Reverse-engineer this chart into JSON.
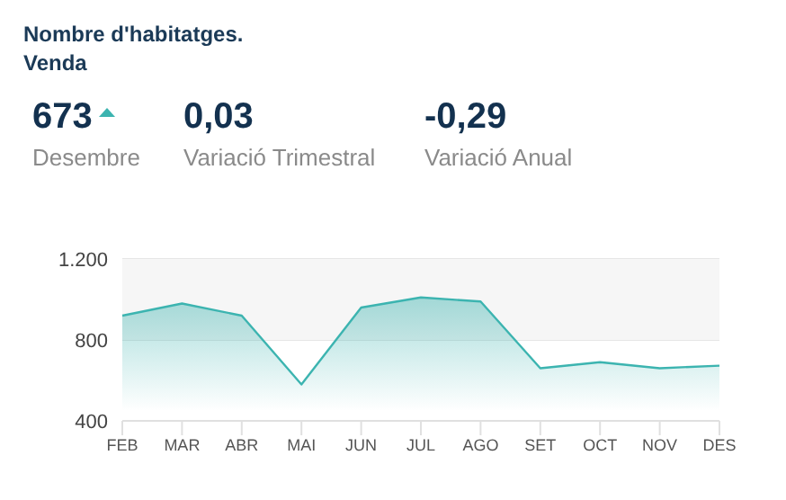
{
  "chart_data": {
    "type": "area",
    "title": "Nombre d'habitatges. Venda",
    "annotations": [
      "673",
      "Desembre",
      "0,03",
      "Variació Trimestral",
      "-0,29",
      "Variació Anual"
    ],
    "categories": [
      "FEB",
      "MAR",
      "ABR",
      "MAI",
      "JUN",
      "JUL",
      "AGO",
      "SET",
      "OCT",
      "NOV",
      "DES"
    ],
    "series": [
      {
        "color": "#3cb4b0",
        "values": [
          920,
          980,
          920,
          580,
          960,
          1010,
          990,
          660,
          690,
          660,
          673
        ]
      }
    ],
    "ylim": [
      400,
      1200
    ],
    "yticks": [
      400,
      800,
      {
        "value": 1200,
        "label": "1.200"
      }
    ],
    "bands": [
      {
        "axis": "y",
        "from": 800,
        "to": 1200,
        "color": "#f6f6f6"
      }
    ],
    "grid": "y"
  }
}
